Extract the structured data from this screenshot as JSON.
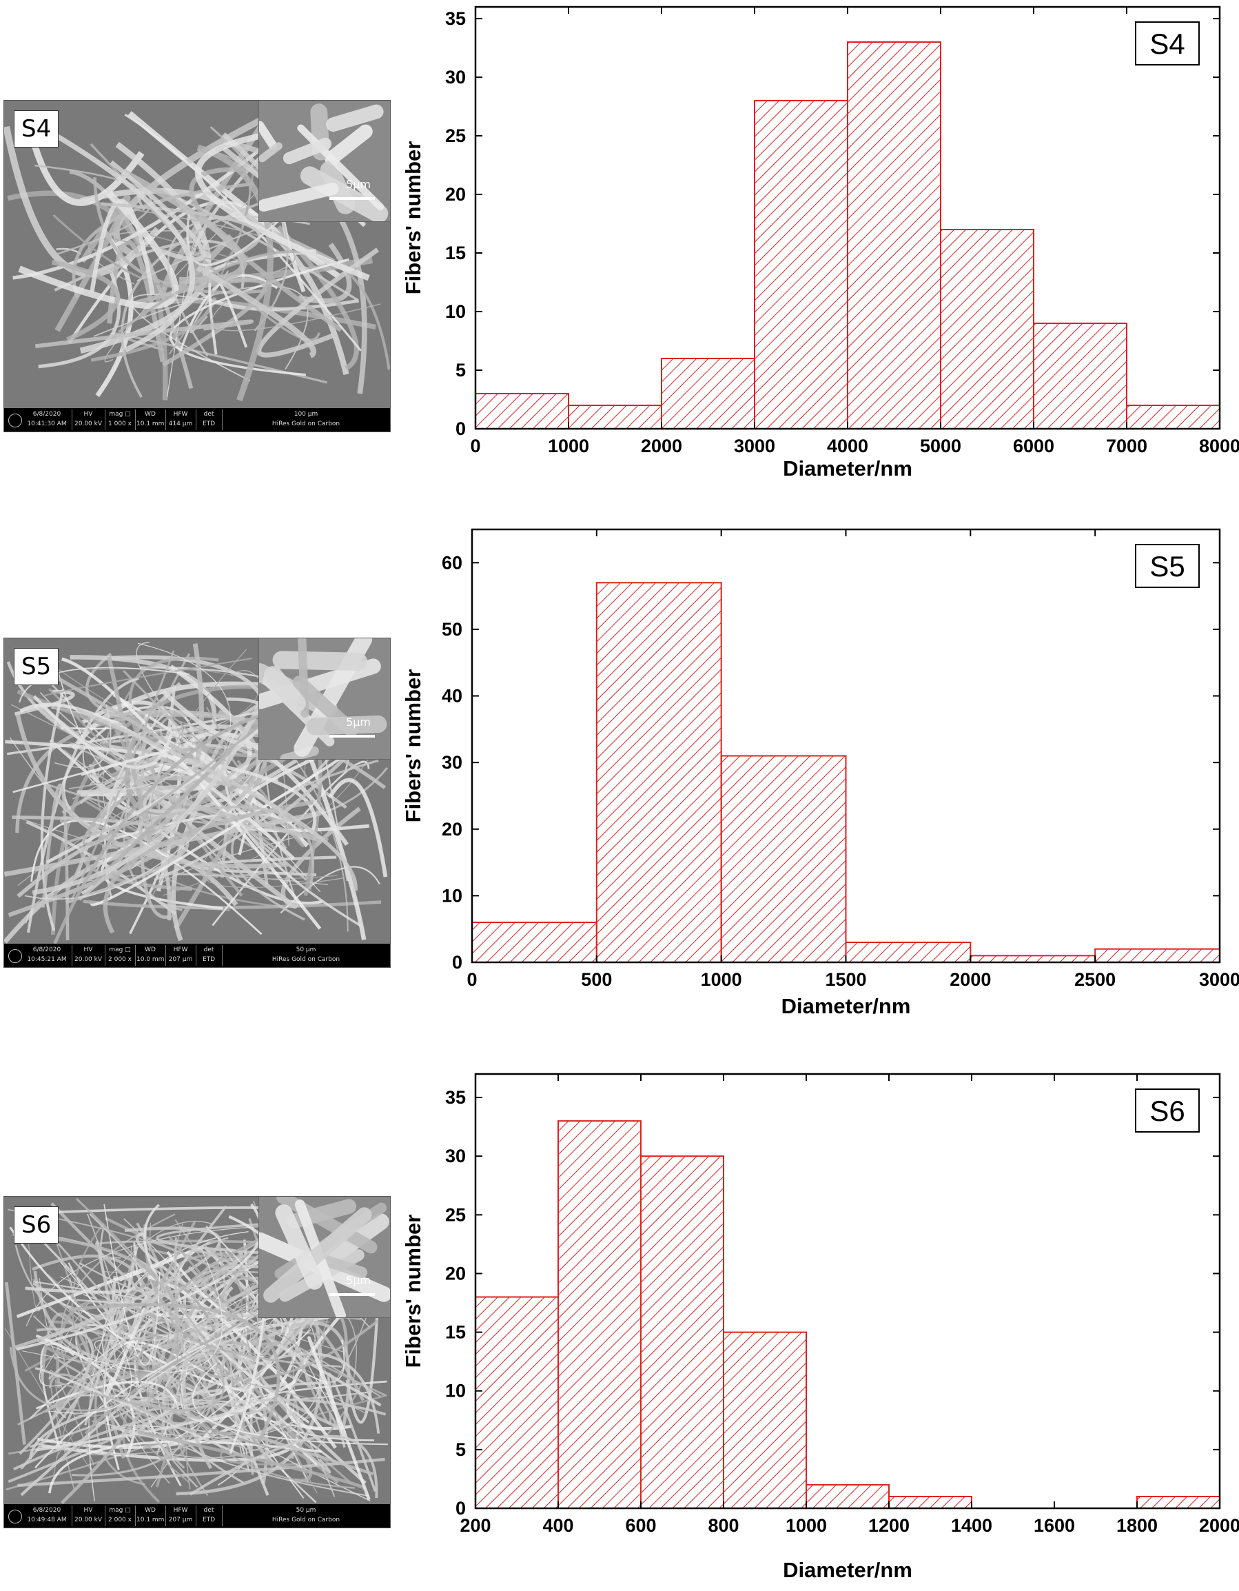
{
  "colors": {
    "bar": "#e41e1e",
    "axis": "#000000",
    "sem_bg": "#8c8c8c"
  },
  "panels": [
    {
      "sem": {
        "label": "S4",
        "inset_scale": "5μm",
        "databar": {
          "date": "6/8/2020",
          "time": "10:41:30 AM",
          "hv_label": "HV",
          "hv": "20.00 kV",
          "mag_label": "mag □",
          "mag": "1 000 x",
          "wd_label": "WD",
          "wd": "10.1 mm",
          "hfw_label": "HFW",
          "hfw": "414 μm",
          "det_label": "det",
          "det": "ETD",
          "scale": "100 μm",
          "note": "HiRes Gold on Carbon"
        }
      }
    },
    {
      "sem": {
        "label": "S5",
        "inset_scale": "5μm",
        "databar": {
          "date": "6/8/2020",
          "time": "10:45:21 AM",
          "hv_label": "HV",
          "hv": "20.00 kV",
          "mag_label": "mag □",
          "mag": "2 000 x",
          "wd_label": "WD",
          "wd": "10.0 mm",
          "hfw_label": "HFW",
          "hfw": "207 μm",
          "det_label": "det",
          "det": "ETD",
          "scale": "50 μm",
          "note": "HiRes Gold on Carbon"
        }
      }
    },
    {
      "sem": {
        "label": "S6",
        "inset_scale": "5μm",
        "databar": {
          "date": "6/8/2020",
          "time": "10:49:48 AM",
          "hv_label": "HV",
          "hv": "20.00 kV",
          "mag_label": "mag □",
          "mag": "2 000 x",
          "wd_label": "WD",
          "wd": "10.1 mm",
          "hfw_label": "HFW",
          "hfw": "207 μm",
          "det_label": "det",
          "det": "ETD",
          "scale": "50 μm",
          "note": "HiRes Gold on Carbon"
        }
      }
    }
  ],
  "chart_data": [
    {
      "type": "bar",
      "sample_label": "S4",
      "xlabel": "Diameter/nm",
      "ylabel": "Fibers' number",
      "bin_edges": [
        0,
        1000,
        2000,
        3000,
        4000,
        5000,
        6000,
        7000,
        8000
      ],
      "values": [
        3,
        2,
        6,
        28,
        33,
        17,
        9,
        2
      ],
      "xlim": [
        0,
        8000
      ],
      "ylim": [
        0,
        36
      ],
      "xticks": [
        0,
        1000,
        2000,
        3000,
        4000,
        5000,
        6000,
        7000,
        8000
      ],
      "yticks": [
        0,
        5,
        10,
        15,
        20,
        25,
        30,
        35
      ],
      "grid": false
    },
    {
      "type": "bar",
      "sample_label": "S5",
      "xlabel": "Diameter/nm",
      "ylabel": "Fibers' number",
      "bin_edges": [
        0,
        500,
        1000,
        1500,
        2000,
        2500,
        3000
      ],
      "values": [
        6,
        57,
        31,
        3,
        1,
        2
      ],
      "xlim": [
        0,
        3000
      ],
      "ylim": [
        0,
        65
      ],
      "xticks": [
        0,
        500,
        1000,
        1500,
        2000,
        2500,
        3000
      ],
      "yticks": [
        0,
        10,
        20,
        30,
        40,
        50,
        60
      ],
      "grid": false
    },
    {
      "type": "bar",
      "sample_label": "S6",
      "xlabel": "Diameter/nm",
      "ylabel": "Fibers' number",
      "bin_edges": [
        200,
        400,
        600,
        800,
        1000,
        1200,
        1400,
        1600,
        1800,
        2000
      ],
      "values": [
        18,
        33,
        30,
        15,
        2,
        1,
        0,
        0,
        1
      ],
      "xlim": [
        200,
        2000
      ],
      "ylim": [
        0,
        37
      ],
      "xticks": [
        200,
        400,
        600,
        800,
        1000,
        1200,
        1400,
        1600,
        1800,
        2000
      ],
      "yticks": [
        0,
        5,
        10,
        15,
        20,
        25,
        30,
        35
      ],
      "grid": false
    }
  ]
}
